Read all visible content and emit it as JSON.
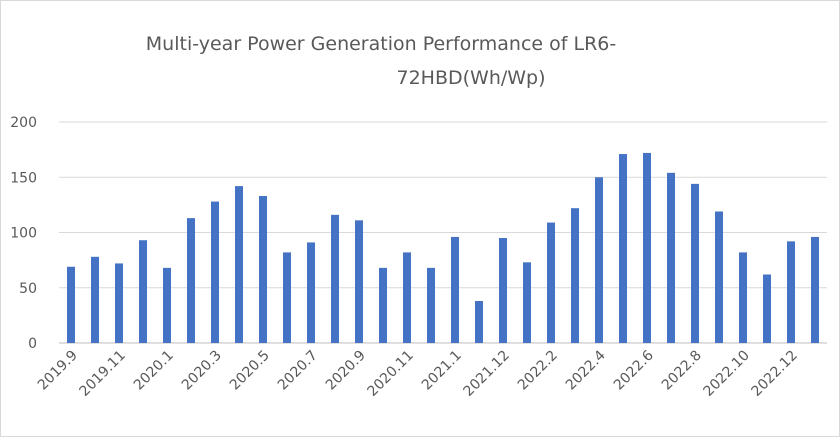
{
  "chart_data": {
    "type": "bar",
    "title_line1": "Multi-year Power Generation Performance of LR6-",
    "title_line2": "72HBD(Wh/Wp)",
    "xlabel": "",
    "ylabel": "",
    "ylim": [
      0,
      200
    ],
    "yticks": [
      0,
      50,
      100,
      150,
      200
    ],
    "grid": true,
    "legend": "none",
    "bar_color": "#4472c4",
    "categories": [
      "2019.9",
      "2019.10",
      "2019.11",
      "2019.12",
      "2020.1",
      "2020.2",
      "2020.3",
      "2020.4",
      "2020.5",
      "2020.6",
      "2020.7",
      "2020.8",
      "2020.9",
      "2020.10",
      "2020.11",
      "2020.12",
      "2021.1",
      "2021.11",
      "2021.12",
      "2022.1",
      "2022.2",
      "2022.3",
      "2022.4",
      "2022.5",
      "2022.6",
      "2022.7",
      "2022.8",
      "2022.9",
      "2022.10",
      "2022.11",
      "2022.12",
      "2023.1"
    ],
    "visible_tick_labels": [
      "2019.9",
      "2019.11",
      "2020.1",
      "2020.3",
      "2020.5",
      "2020.7",
      "2020.9",
      "2020.11",
      "2021.1",
      "2021.12",
      "2022.2",
      "2022.4",
      "2022.6",
      "2022.8",
      "2022.10",
      "2022.12"
    ],
    "values": [
      69,
      78,
      72,
      93,
      68,
      113,
      128,
      142,
      133,
      82,
      91,
      116,
      111,
      68,
      82,
      68,
      96,
      38,
      95,
      73,
      109,
      122,
      150,
      171,
      172,
      154,
      144,
      119,
      82,
      62,
      92,
      96
    ]
  }
}
